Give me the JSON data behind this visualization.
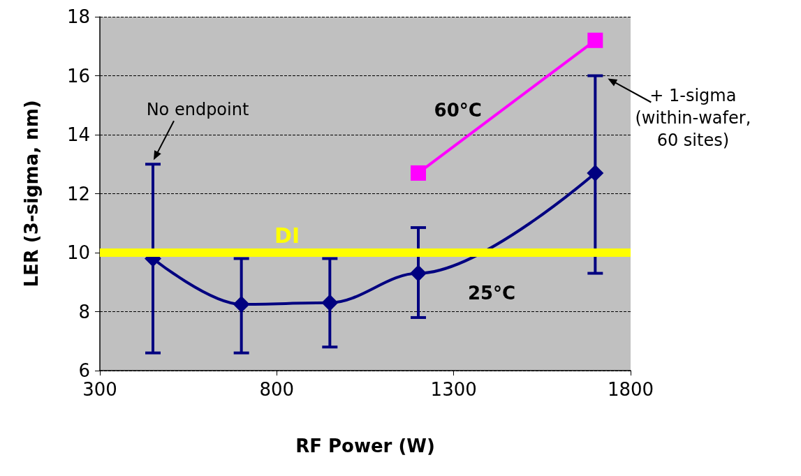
{
  "chart_data": {
    "type": "line",
    "xlabel": "RF Power (W)",
    "ylabel": "LER (3-sigma, nm)",
    "xlim": [
      300,
      1800
    ],
    "xticks": [
      300,
      800,
      1300,
      1800
    ],
    "ylim": [
      6,
      18
    ],
    "yticks": [
      6,
      8,
      10,
      12,
      14,
      16,
      18
    ],
    "grid": "y",
    "legend": false,
    "line_style": "solid",
    "series": [
      {
        "name": "25°C",
        "color": "#000080",
        "marker": "diamond",
        "x": [
          450,
          700,
          950,
          1200,
          1700
        ],
        "values": [
          9.8,
          8.25,
          8.3,
          9.3,
          12.7
        ],
        "errors": [
          [
            6.6,
            13
          ],
          [
            6.6,
            9.8
          ],
          [
            6.8,
            9.8
          ],
          [
            7.8,
            10.85
          ],
          [
            9.3,
            16
          ]
        ]
      },
      {
        "name": "60°C",
        "color": "#ff00ff",
        "marker": "square",
        "x": [
          1200,
          1700
        ],
        "values": [
          12.7,
          17.2
        ]
      }
    ],
    "ref_lines": [
      {
        "axis": "y",
        "value": 10,
        "label": "DI",
        "color": "#ffff00"
      }
    ],
    "annotations": [
      {
        "text": "No endpoint",
        "x": 450,
        "y": 13
      },
      {
        "text": "+ 1-sigma\n(within-wafer,\n60 sites)",
        "x": 1700,
        "y": 16
      }
    ]
  }
}
